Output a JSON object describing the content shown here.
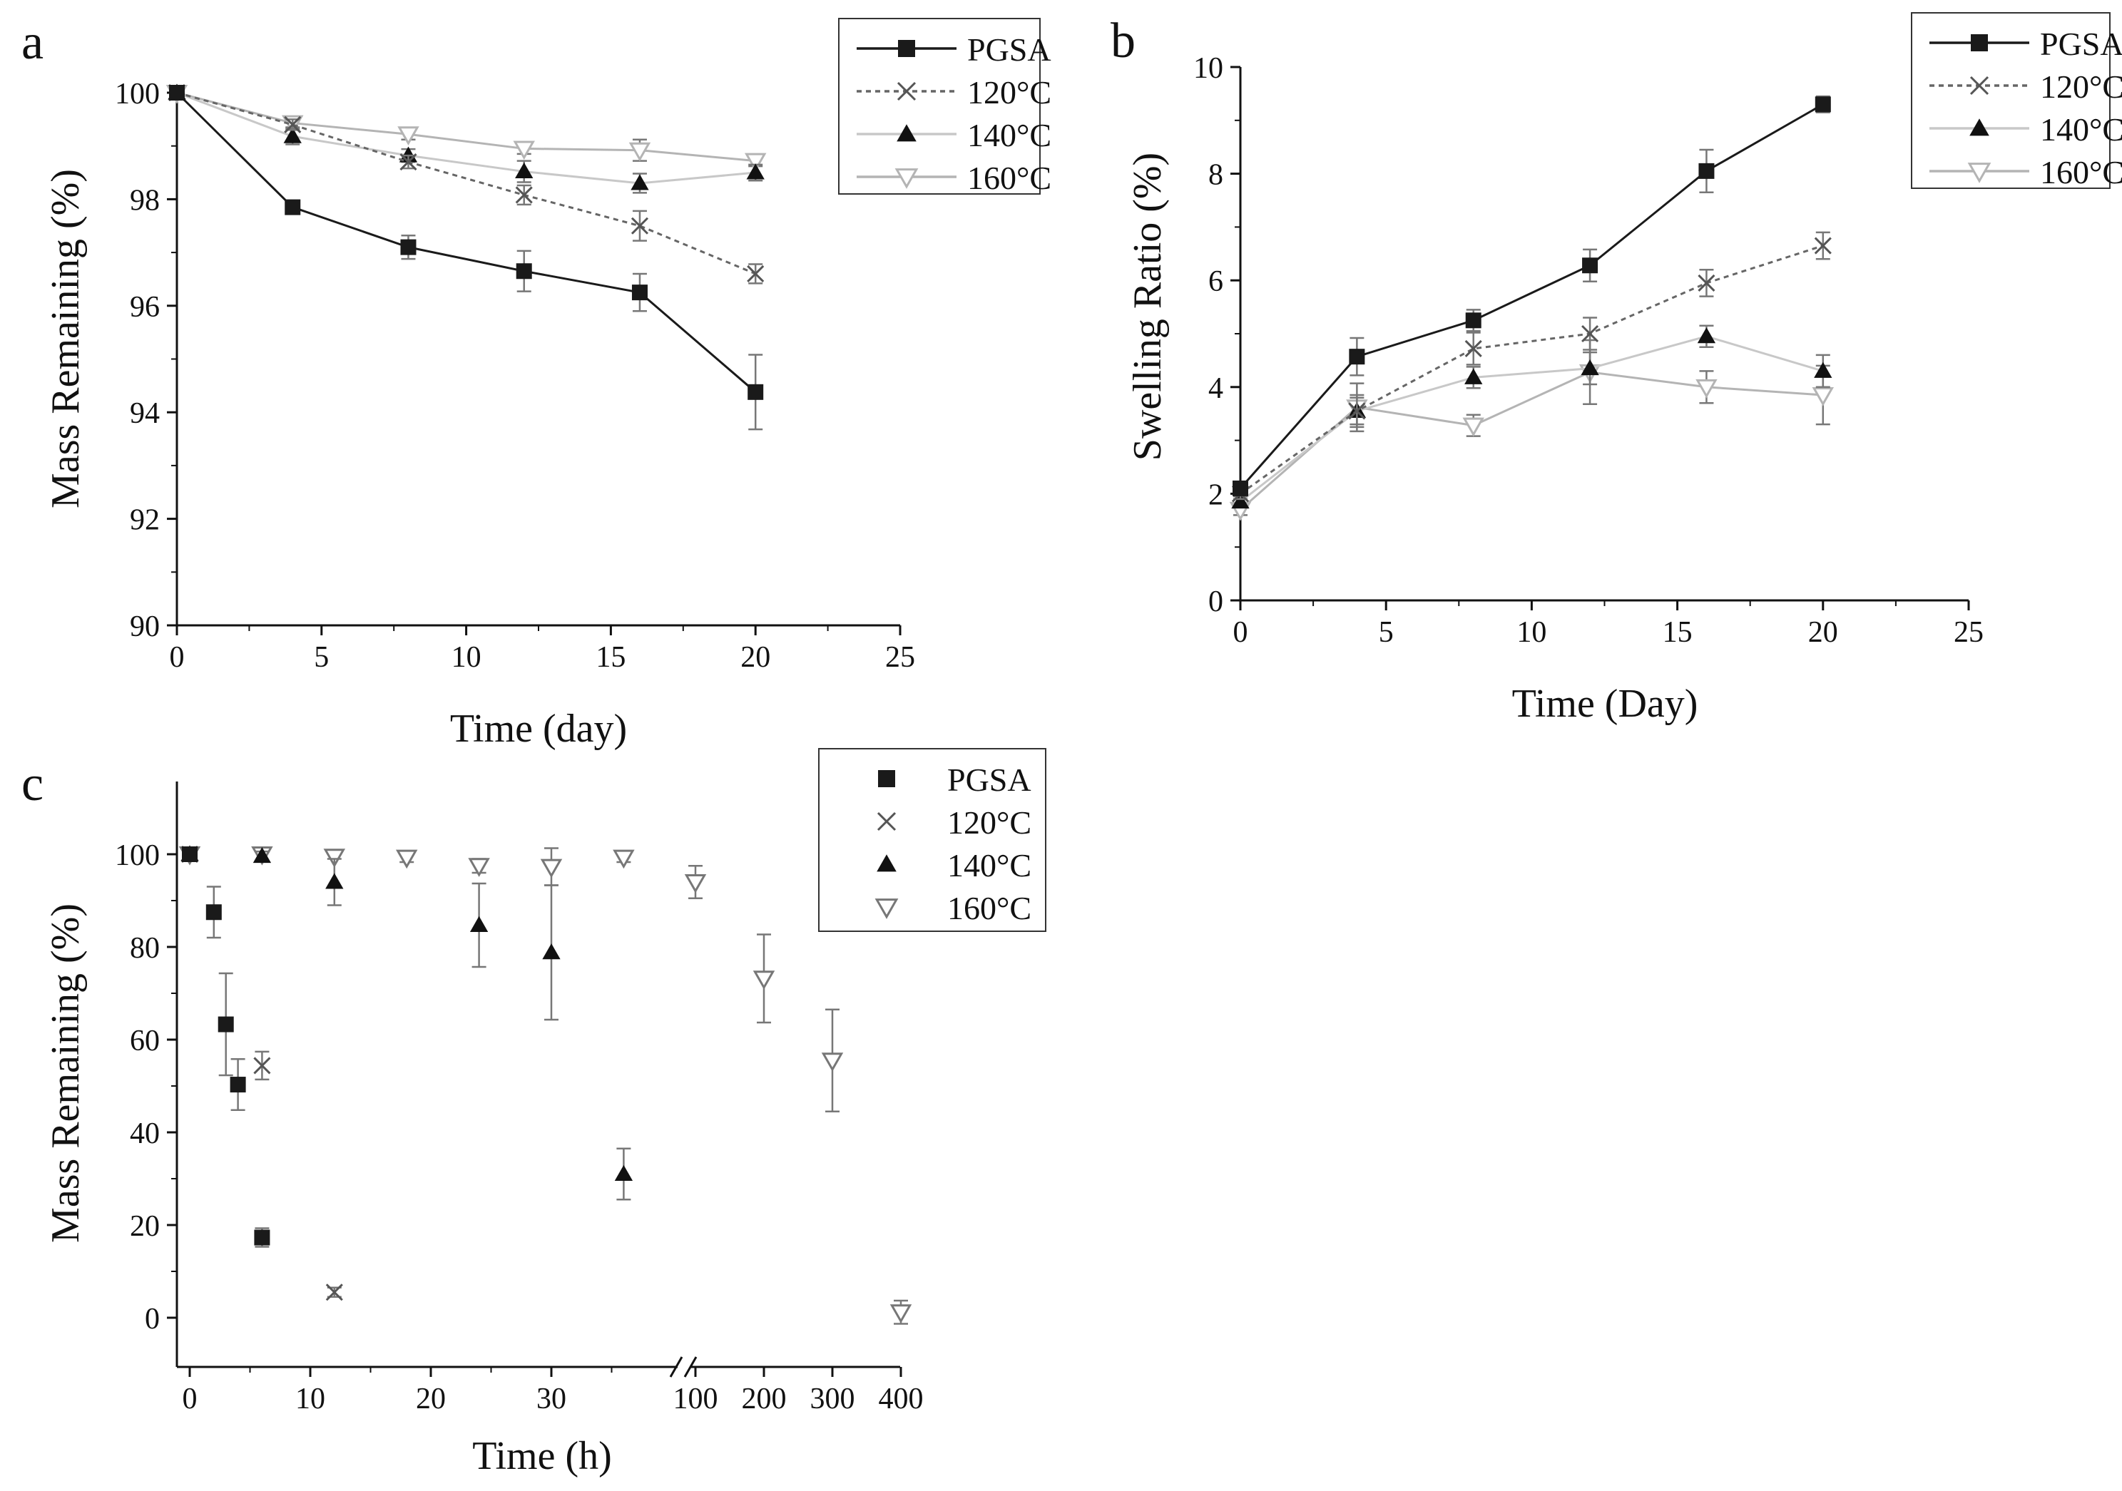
{
  "chart_data": [
    {
      "panel_label": "a",
      "type": "line",
      "xlabel": "Time (day)",
      "ylabel": "Mass Remaining (%)",
      "xlim": [
        0,
        25
      ],
      "ylim": [
        90,
        100
      ],
      "xticks": [
        0,
        5,
        10,
        15,
        20,
        25
      ],
      "yticks": [
        90,
        92,
        94,
        96,
        98,
        100
      ],
      "x": [
        0,
        4,
        8,
        12,
        16,
        20
      ],
      "legend_position": "top-right",
      "grid": false,
      "series": [
        {
          "name": "PGSA",
          "marker": "square",
          "line": "solid",
          "color": "#1a1a1a",
          "values": [
            100,
            97.85,
            97.1,
            96.65,
            96.25,
            94.38
          ],
          "errors": [
            0,
            0.05,
            0.22,
            0.38,
            0.35,
            0.7
          ]
        },
        {
          "name": "120°C",
          "marker": "x",
          "line": "dotted",
          "color": "#666666",
          "values": [
            100,
            99.4,
            98.7,
            98.08,
            97.5,
            96.6
          ],
          "errors": [
            0,
            0.1,
            0.12,
            0.18,
            0.28,
            0.18
          ]
        },
        {
          "name": "140°C",
          "marker": "triangle-up",
          "line": "solid",
          "color": "#c8c8c8",
          "values": [
            100,
            99.18,
            98.82,
            98.52,
            98.3,
            98.5
          ],
          "errors": [
            0,
            0.15,
            0.12,
            0.2,
            0.18,
            0.15
          ]
        },
        {
          "name": "160°C",
          "marker": "triangle-down",
          "line": "solid",
          "color": "#b4b4b4",
          "values": [
            100,
            99.43,
            99.22,
            98.95,
            98.92,
            98.72
          ],
          "errors": [
            0,
            0.08,
            0.1,
            0.1,
            0.2,
            0.1
          ]
        }
      ]
    },
    {
      "panel_label": "b",
      "type": "line",
      "xlabel": "Time (Day)",
      "ylabel": "Swelling Ratio (%)",
      "xlim": [
        0,
        25
      ],
      "ylim": [
        0,
        10
      ],
      "xticks": [
        0,
        5,
        10,
        15,
        20,
        25
      ],
      "yticks": [
        0,
        2,
        4,
        6,
        8,
        10
      ],
      "x": [
        0,
        4,
        8,
        12,
        16,
        20
      ],
      "legend_position": "top-right",
      "grid": false,
      "series": [
        {
          "name": "PGSA",
          "marker": "square",
          "line": "solid",
          "color": "#1a1a1a",
          "values": [
            2.1,
            4.57,
            5.25,
            6.28,
            8.05,
            9.3
          ],
          "errors": [
            0.1,
            0.35,
            0.2,
            0.3,
            0.4,
            0.15
          ]
        },
        {
          "name": "120°C",
          "marker": "x",
          "line": "dotted",
          "color": "#666666",
          "values": [
            2.0,
            3.55,
            4.72,
            5.0,
            5.95,
            6.65
          ],
          "errors": [
            0.1,
            0.3,
            0.3,
            0.3,
            0.25,
            0.25
          ]
        },
        {
          "name": "140°C",
          "marker": "triangle-up",
          "line": "solid",
          "color": "#c8c8c8",
          "values": [
            1.85,
            3.55,
            4.18,
            4.35,
            4.95,
            4.3
          ],
          "errors": [
            0.1,
            0.25,
            0.2,
            0.3,
            0.2,
            0.3
          ]
        },
        {
          "name": "160°C",
          "marker": "triangle-down",
          "line": "solid",
          "color": "#b4b4b4",
          "values": [
            1.7,
            3.62,
            3.28,
            4.28,
            4.0,
            3.85
          ],
          "errors": [
            0.1,
            0.45,
            0.2,
            0.6,
            0.3,
            0.55
          ]
        }
      ]
    },
    {
      "panel_label": "c",
      "type": "scatter",
      "xlabel": "Time (h)",
      "ylabel": "Mass Remaining (%)",
      "ylim": [
        -10,
        105
      ],
      "yticks": [
        0,
        20,
        40,
        60,
        80,
        100
      ],
      "xtick_labels": [
        "0",
        "10",
        "20",
        "30",
        "100",
        "200",
        "300",
        "400"
      ],
      "axis_break": "between 36 h and 100 h",
      "legend_position": "top-right",
      "grid": false,
      "series": [
        {
          "name": "PGSA",
          "marker": "square",
          "color": "#1a1a1a",
          "x": [
            0,
            2,
            3,
            4,
            6
          ],
          "values": [
            100,
            87.5,
            63.3,
            50.3,
            17.3
          ],
          "errors": [
            0.5,
            5.5,
            11,
            5.5,
            2
          ]
        },
        {
          "name": "120°C",
          "marker": "x",
          "color": "#555555",
          "x": [
            0,
            6,
            12
          ],
          "values": [
            100,
            54.4,
            5.5
          ],
          "errors": [
            0.5,
            3,
            1
          ]
        },
        {
          "name": "140°C",
          "marker": "triangle-up",
          "color": "#1a1a1a",
          "x": [
            0,
            6,
            12,
            24,
            30,
            36
          ],
          "values": [
            100,
            99.6,
            94,
            84.7,
            78.8,
            31
          ],
          "errors": [
            0.5,
            1,
            5,
            9,
            14.5,
            5.5
          ]
        },
        {
          "name": "160°C",
          "marker": "triangle-down",
          "color": "#777777",
          "x": [
            0,
            6,
            12,
            18,
            24,
            30,
            36,
            100,
            200,
            300,
            400
          ],
          "values": [
            100,
            100,
            99.5,
            99.3,
            97.5,
            97.3,
            99.3,
            94,
            73.2,
            55.5,
            1.2
          ],
          "errors": [
            0.5,
            0.5,
            0.5,
            1,
            1.5,
            4,
            1,
            3.5,
            9.5,
            11,
            2.5
          ]
        }
      ]
    }
  ]
}
